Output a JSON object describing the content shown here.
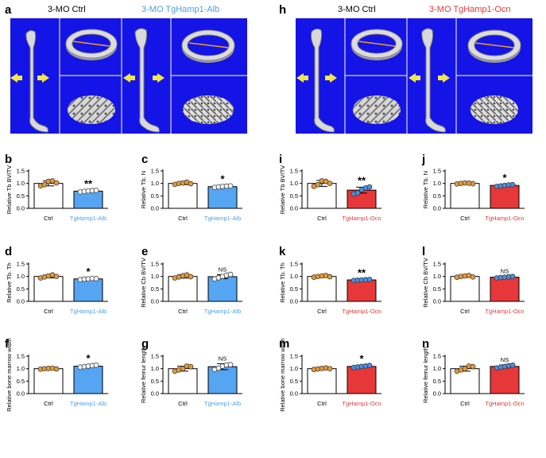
{
  "colors": {
    "blue": "#55a5f2",
    "red": "#e63838",
    "orange": "#e39a3a",
    "white_pt": "#f4f4f4",
    "bluept": "#4a90e2",
    "panel_bg": "#1414e6",
    "label_blue": "#4aa0f0",
    "label_red": "#e63838"
  },
  "images": {
    "left": {
      "panel": "a",
      "label_ctrl": "3-MO Ctrl",
      "label_tg": "3-MO TgHamp1-Alb",
      "tg_color": "#4aa0f0"
    },
    "right": {
      "panel": "h",
      "label_ctrl": "3-MO Ctrl",
      "label_tg": "3-MO TgHamp1-Ocn",
      "tg_color": "#e63838"
    }
  },
  "chart_data": [
    {
      "id": "b",
      "type": "bar",
      "categories": [
        "Ctrl",
        "TgHamp1-Alb"
      ],
      "values": [
        1.0,
        0.69
      ],
      "errors": [
        0.1,
        0.03
      ],
      "ylabel": "Relative Tb BV/TV",
      "ylim": [
        0,
        1.5
      ],
      "yticks": [
        "0.0",
        "0.5",
        "1.0",
        "1.5"
      ],
      "sig": "**",
      "tg_color": "#55a5f2",
      "tg_label_color": "#4aa0f0",
      "points": [
        [
          0.9,
          0.95,
          1.08,
          1.1,
          1.02
        ],
        [
          0.66,
          0.68,
          0.7,
          0.71,
          0.72
        ]
      ]
    },
    {
      "id": "c",
      "type": "bar",
      "categories": [
        "Ctrl",
        "TgHamp1-Alb"
      ],
      "values": [
        1.0,
        0.87
      ],
      "errors": [
        0.05,
        0.04
      ],
      "ylabel": "Relative Tb. N",
      "ylim": [
        0,
        1.5
      ],
      "yticks": [
        "0.0",
        "0.5",
        "1.0",
        "1.5"
      ],
      "sig": "*",
      "tg_color": "#55a5f2",
      "tg_label_color": "#4aa0f0",
      "points": [
        [
          0.96,
          1.0,
          1.02,
          1.05,
          0.99
        ],
        [
          0.84,
          0.86,
          0.88,
          0.89,
          0.9
        ]
      ]
    },
    {
      "id": "d",
      "type": "bar",
      "categories": [
        "Ctrl",
        "TgHamp1-Alb"
      ],
      "values": [
        1.0,
        0.9
      ],
      "errors": [
        0.06,
        0.03
      ],
      "ylabel": "Relative Tb. Th",
      "ylim": [
        0,
        1.5
      ],
      "yticks": [
        "0.0",
        "0.5",
        "1.0",
        "1.5"
      ],
      "sig": "*",
      "tg_color": "#55a5f2",
      "tg_label_color": "#4aa0f0",
      "points": [
        [
          0.94,
          0.98,
          1.02,
          1.06,
          1.0
        ],
        [
          0.87,
          0.89,
          0.9,
          0.92,
          0.91
        ]
      ]
    },
    {
      "id": "e",
      "type": "bar",
      "categories": [
        "Ctrl",
        "TgHamp1-Alb"
      ],
      "values": [
        1.0,
        0.99
      ],
      "errors": [
        0.07,
        0.08
      ],
      "ylabel": "Relative Cb BV/TV",
      "ylim": [
        0,
        1.5
      ],
      "yticks": [
        "0.0",
        "0.5",
        "1.0",
        "1.5"
      ],
      "sig": "NS",
      "tg_color": "#55a5f2",
      "tg_label_color": "#4aa0f0",
      "points": [
        [
          0.94,
          0.98,
          1.03,
          1.06,
          0.99
        ],
        [
          0.9,
          0.95,
          1.0,
          1.05,
          1.08
        ]
      ]
    },
    {
      "id": "f",
      "type": "bar",
      "categories": [
        "Ctrl",
        "TgHamp1-Alb"
      ],
      "values": [
        1.0,
        1.1
      ],
      "errors": [
        0.03,
        0.05
      ],
      "ylabel": "Relative bone marrow width",
      "ylim": [
        0,
        1.5
      ],
      "yticks": [
        "0.0",
        "0.5",
        "1.0",
        "1.5"
      ],
      "sig": "*",
      "tg_color": "#55a5f2",
      "tg_label_color": "#4aa0f0",
      "points": [
        [
          0.98,
          1.0,
          1.01,
          1.02,
          0.99
        ],
        [
          1.06,
          1.08,
          1.1,
          1.12,
          1.14
        ]
      ]
    },
    {
      "id": "g",
      "type": "bar",
      "categories": [
        "Ctrl",
        "TgHamp1-Alb"
      ],
      "values": [
        1.0,
        1.08
      ],
      "errors": [
        0.1,
        0.12
      ],
      "ylabel": "Relative femur length",
      "ylim": [
        0,
        1.5
      ],
      "yticks": [
        "0.0",
        "0.5",
        "1.0",
        "1.5"
      ],
      "sig": "NS",
      "tg_color": "#55a5f2",
      "tg_label_color": "#4aa0f0",
      "points": [
        [
          0.9,
          0.95,
          1.0,
          1.1,
          1.08
        ],
        [
          0.97,
          1.02,
          1.1,
          1.15,
          1.16
        ]
      ]
    },
    {
      "id": "i",
      "type": "bar",
      "categories": [
        "Ctrl",
        "TgHamp1-Ocn"
      ],
      "values": [
        1.0,
        0.73
      ],
      "errors": [
        0.12,
        0.12
      ],
      "ylabel": "Relative Tb BV/TV",
      "ylim": [
        0,
        1.5
      ],
      "yticks": [
        "0.0",
        "0.5",
        "1.0",
        "1.5"
      ],
      "sig": "**",
      "tg_color": "#e63838",
      "tg_label_color": "#e63838",
      "points": [
        [
          0.88,
          0.95,
          1.1,
          1.08,
          1.0
        ],
        [
          0.58,
          0.62,
          0.75,
          0.82,
          0.86
        ]
      ]
    },
    {
      "id": "j",
      "type": "bar",
      "categories": [
        "Ctrl",
        "TgHamp1-Ocn"
      ],
      "values": [
        1.0,
        0.92
      ],
      "errors": [
        0.03,
        0.04
      ],
      "ylabel": "Relative Tb. N",
      "ylim": [
        0,
        1.5
      ],
      "yticks": [
        "0.0",
        "0.5",
        "1.0",
        "1.5"
      ],
      "sig": "*",
      "tg_color": "#e63838",
      "tg_label_color": "#e63838",
      "points": [
        [
          0.98,
          1.0,
          1.02,
          1.01,
          0.99
        ],
        [
          0.88,
          0.9,
          0.92,
          0.94,
          0.95
        ]
      ]
    },
    {
      "id": "k",
      "type": "bar",
      "categories": [
        "Ctrl",
        "TgHamp1-Ocn"
      ],
      "values": [
        1.0,
        0.86
      ],
      "errors": [
        0.04,
        0.02
      ],
      "ylabel": "Relative Tb. Th",
      "ylim": [
        0,
        1.5
      ],
      "yticks": [
        "0.0",
        "0.5",
        "1.0",
        "1.5"
      ],
      "sig": "**",
      "tg_color": "#e63838",
      "tg_label_color": "#e63838",
      "points": [
        [
          0.97,
          1.0,
          1.02,
          1.04,
          0.99
        ],
        [
          0.84,
          0.85,
          0.86,
          0.87,
          0.88
        ]
      ]
    },
    {
      "id": "l",
      "type": "bar",
      "categories": [
        "Ctrl",
        "TgHamp1-Ocn"
      ],
      "values": [
        1.0,
        0.97
      ],
      "errors": [
        0.04,
        0.03
      ],
      "ylabel": "Relative Cb BV/TV",
      "ylim": [
        0,
        1.5
      ],
      "yticks": [
        "0.0",
        "0.5",
        "1.0",
        "1.5"
      ],
      "sig": "NS",
      "tg_color": "#e63838",
      "tg_label_color": "#e63838",
      "tg_label_large": true,
      "points": [
        [
          0.97,
          1.0,
          1.02,
          1.04,
          0.98
        ],
        [
          0.94,
          0.96,
          0.97,
          0.99,
          1.0
        ]
      ]
    },
    {
      "id": "m",
      "type": "bar",
      "categories": [
        "Ctrl",
        "TgHamp1-Ocn"
      ],
      "values": [
        1.0,
        1.09
      ],
      "errors": [
        0.04,
        0.05
      ],
      "ylabel": "Relative bone marrow width",
      "ylim": [
        0,
        1.5
      ],
      "yticks": [
        "0.0",
        "0.5",
        "1.0",
        "1.5"
      ],
      "sig": "*",
      "tg_color": "#e63838",
      "tg_label_color": "#e63838",
      "points": [
        [
          0.97,
          0.99,
          1.01,
          1.03,
          1.0
        ],
        [
          1.05,
          1.07,
          1.09,
          1.11,
          1.13
        ]
      ]
    },
    {
      "id": "n",
      "type": "bar",
      "categories": [
        "Ctrl",
        "TgHamp1-Ocn"
      ],
      "values": [
        1.0,
        1.09
      ],
      "errors": [
        0.1,
        0.06
      ],
      "ylabel": "Relative femur length",
      "ylim": [
        0,
        1.5
      ],
      "yticks": [
        "0.0",
        "0.5",
        "1.0",
        "1.5"
      ],
      "sig": "NS",
      "tg_color": "#e63838",
      "tg_label_color": "#e63838",
      "points": [
        [
          0.9,
          0.95,
          1.0,
          1.1,
          1.08
        ],
        [
          1.03,
          1.06,
          1.09,
          1.12,
          1.14
        ]
      ]
    }
  ]
}
